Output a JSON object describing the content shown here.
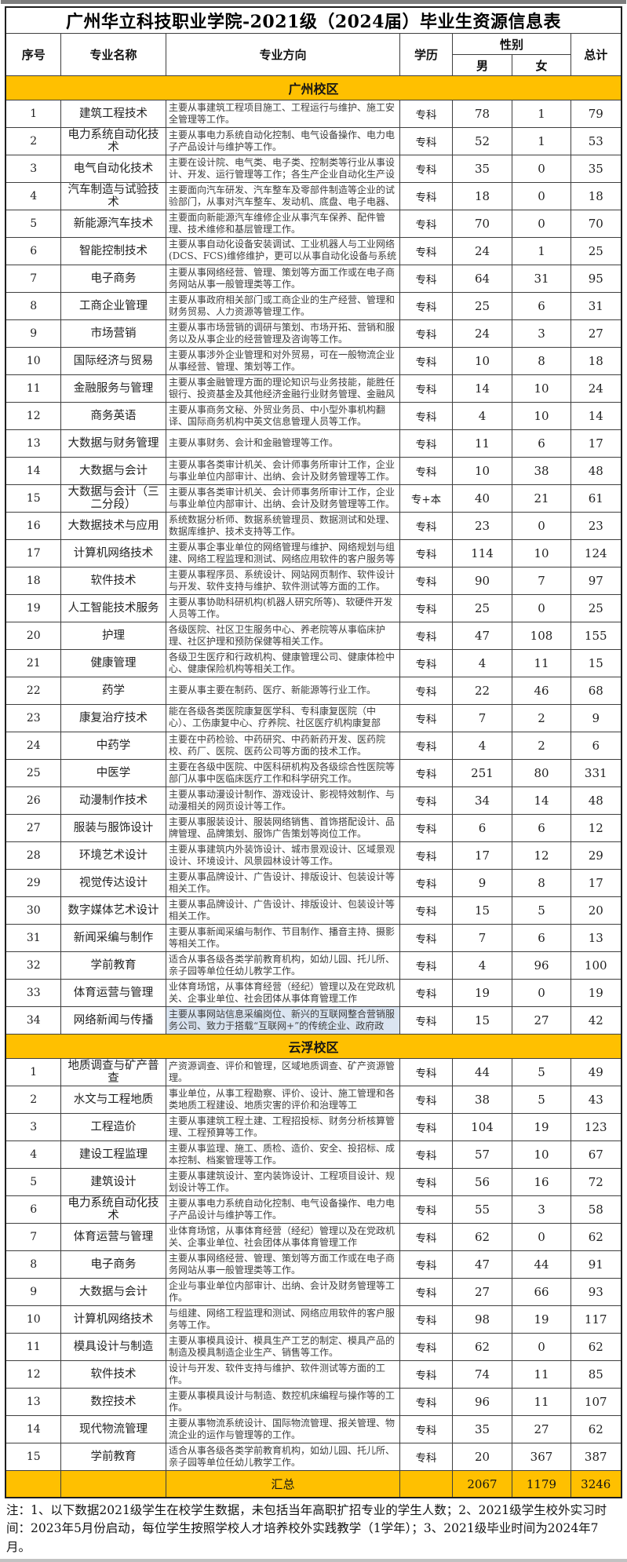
{
  "title": "广州华立科技职业学院-2021级（2024届）毕业生资源信息表",
  "columns": {
    "no": "序号",
    "major": "专业名称",
    "direction": "专业方向",
    "level": "学历",
    "gender": "性别",
    "male": "男",
    "female": "女",
    "total": "总计"
  },
  "colors": {
    "section_bg": "#FFC000",
    "highlight_cell_bg": "#dbe5f1"
  },
  "sections": [
    {
      "name": "广州校区",
      "rows": [
        {
          "no": "1",
          "major": "建筑工程技术",
          "desc": "主要从事建筑工程项目施工、工程运行与维护、施工安全管理等工作。",
          "level": "专科",
          "male": "78",
          "female": "1",
          "total": "79"
        },
        {
          "no": "2",
          "major": "电力系统自动化技术",
          "desc": "主要从事电力系统自动化控制、电气设备操作、电力电子产品设计与维护等工作。",
          "level": "专科",
          "male": "52",
          "female": "1",
          "total": "53"
        },
        {
          "no": "3",
          "major": "电气自动化技术",
          "desc": "主要在设计院、电气类、电子类、控制类等行业从事设计、开发、运行管理等工作；各生产企业自动化生产设",
          "level": "专科",
          "male": "35",
          "female": "0",
          "total": "35"
        },
        {
          "no": "4",
          "major": "汽车制造与试验技术",
          "desc": "主要面向汽车研发、汽车整车及零部件制造等企业的试验部门，从事对汽车整车、发动机、底盘、电子电器、",
          "level": "专科",
          "male": "18",
          "female": "0",
          "total": "18"
        },
        {
          "no": "5",
          "major": "新能源汽车技术",
          "desc": "主要面向新能源汽车维修企业从事汽车保养、配件管理、技术维修和基层管理工作。",
          "level": "专科",
          "male": "70",
          "female": "0",
          "total": "70"
        },
        {
          "no": "6",
          "major": "智能控制技术",
          "desc": "主要从事自动化设备安装调试、工业机器人与工业网络(DCS、FCS)维修维护，更可以从事自动化设备与系统的",
          "level": "专科",
          "male": "24",
          "female": "1",
          "total": "25"
        },
        {
          "no": "7",
          "major": "电子商务",
          "desc": "主要从事网络经营、管理、策划等方面工作或在电子商务网站从事一般管理类等工作。",
          "level": "专科",
          "male": "64",
          "female": "31",
          "total": "95"
        },
        {
          "no": "8",
          "major": "工商企业管理",
          "desc": "主要从事政府相关部门或工商企业的生产经营、管理和财务贸易、人力资源等管理工作。",
          "level": "专科",
          "male": "25",
          "female": "6",
          "total": "31"
        },
        {
          "no": "9",
          "major": "市场营销",
          "desc": "主要从事市场营销的调研与策划、市场开拓、营销和服务以及从事企业的经营管理及咨询等工作。",
          "level": "专科",
          "male": "24",
          "female": "3",
          "total": "27"
        },
        {
          "no": "10",
          "major": "国际经济与贸易",
          "desc": "主要从事涉外企业管理和对外贸易，可在一般物流企业从事经营、管理、策划等工作。",
          "level": "专科",
          "male": "10",
          "female": "8",
          "total": "18"
        },
        {
          "no": "11",
          "major": "金融服务与管理",
          "desc": "主要从事金融管理方面的理论知识与业务技能，能胜任银行、投资基金及其他经济金融行业财务管理、金融风",
          "level": "专科",
          "male": "14",
          "female": "10",
          "total": "24"
        },
        {
          "no": "12",
          "major": "商务英语",
          "desc": "主要从事商务文秘、外贸业务员、中小型外事机构翻译、国际商务机构中英文信息管理人员等工作。",
          "level": "专科",
          "male": "4",
          "female": "10",
          "total": "14"
        },
        {
          "no": "13",
          "major": "大数据与财务管理",
          "desc": "主要从事财务、会计和金融管理等工作。",
          "level": "专科",
          "male": "11",
          "female": "6",
          "total": "17"
        },
        {
          "no": "14",
          "major": "大数据与会计",
          "desc": "主要从事各类审计机关、会计师事务所审计工作，企业与事业单位内部审计、出纳、会计及财务管理等工作。",
          "level": "专科",
          "male": "10",
          "female": "38",
          "total": "48"
        },
        {
          "no": "15",
          "major": "大数据与会计（三二分段）",
          "desc": "主要从事各类审计机关、会计师事务所审计工作，企业与事业单位内部审计、出纳、会计及财务管理等工作。",
          "level": "专+本",
          "male": "40",
          "female": "21",
          "total": "61"
        },
        {
          "no": "16",
          "major": "大数据技术与应用",
          "desc": "系统数据分析师、数据系统管理员、数据测试和处理、数据库维护、技术支持等工作。",
          "level": "专科",
          "male": "23",
          "female": "0",
          "total": "23"
        },
        {
          "no": "17",
          "major": "计算机网络技术",
          "desc": "主要从事企事业单位的网络管理与维护、网络规划与组建、网络工程监理和测试、网络应用软件的客户服务等",
          "level": "专科",
          "male": "114",
          "female": "10",
          "total": "124"
        },
        {
          "no": "18",
          "major": "软件技术",
          "desc": "主要从事程序员、系统设计、网站网页制作、软件设计与开发、软件支持与维护、软件测试等方面的工作。",
          "level": "专科",
          "male": "90",
          "female": "7",
          "total": "97"
        },
        {
          "no": "19",
          "major": "人工智能技术服务",
          "desc": "主要从事协助科研机构(机器人研究所等)、软硬件开发人员等工作。",
          "level": "专科",
          "male": "25",
          "female": "0",
          "total": "25"
        },
        {
          "no": "20",
          "major": "护理",
          "desc": "各级医院、社区卫生服务中心、养老院等从事临床护理、社区护理和预防保健等相关工作。",
          "level": "专科",
          "male": "47",
          "female": "108",
          "total": "155"
        },
        {
          "no": "21",
          "major": "健康管理",
          "desc": "各级卫生医疗和行政机构、健康管理公司、健康体检中心、健康保险机构等相关工作。",
          "level": "专科",
          "male": "4",
          "female": "11",
          "total": "15"
        },
        {
          "no": "22",
          "major": "药学",
          "desc": "主要从事主要在制药、医疗、新能源等行业工作。",
          "level": "专科",
          "male": "22",
          "female": "46",
          "total": "68"
        },
        {
          "no": "23",
          "major": "康复治疗技术",
          "desc": "能在各级各类医院康复医学科、专科康复医院（中心）、工伤康复中心、疗养院、社区医疗机构康复部（社区",
          "level": "专科",
          "male": "7",
          "female": "2",
          "total": "9"
        },
        {
          "no": "24",
          "major": "中药学",
          "desc": "主要在中药检验、中药研究、中药新药开发、医药院校、药厂、医院、医药公司等方面的技术工作。",
          "level": "专科",
          "male": "4",
          "female": "2",
          "total": "6"
        },
        {
          "no": "25",
          "major": "中医学",
          "desc": "主要在各级中医院、中医科研机构及各级综合性医院等部门从事中医临床医疗工作和科学研究工作。",
          "level": "专科",
          "male": "251",
          "female": "80",
          "total": "331"
        },
        {
          "no": "26",
          "major": "动漫制作技术",
          "desc": "主要从事动漫设计制作、游戏设计、影视特效制作、与动漫相关的网页设计等工作。",
          "level": "专科",
          "male": "34",
          "female": "14",
          "total": "48"
        },
        {
          "no": "27",
          "major": "服装与服饰设计",
          "desc": "主要从事服装设计、服装网络销售、首饰搭配设计、品牌管理、品牌策划、服饰广告策划等岗位工作。",
          "level": "专科",
          "male": "6",
          "female": "6",
          "total": "12"
        },
        {
          "no": "28",
          "major": "环境艺术设计",
          "desc": "主要从事建筑内外装饰设计、城市景观设计、区域景观设计、环境设计、风景园林设计等工作。",
          "level": "专科",
          "male": "17",
          "female": "12",
          "total": "29"
        },
        {
          "no": "29",
          "major": "视觉传达设计",
          "desc": "主要从事品牌设计、广告设计、排版设计、包装设计等相关工作。",
          "level": "专科",
          "male": "9",
          "female": "8",
          "total": "17"
        },
        {
          "no": "30",
          "major": "数字媒体艺术设计",
          "desc": "主要从事品牌设计、广告设计、排版设计、包装设计等相关工作。",
          "level": "专科",
          "male": "15",
          "female": "5",
          "total": "20"
        },
        {
          "no": "31",
          "major": "新闻采编与制作",
          "desc": "主要从事新闻采编与制作、节目制作、播音主持、摄影等相关工作。",
          "level": "专科",
          "male": "7",
          "female": "6",
          "total": "13"
        },
        {
          "no": "32",
          "major": "学前教育",
          "desc": "适合从事各级各类学前教育机构，如幼儿园、托儿所、亲子园等单位任幼儿教学工作。",
          "level": "专科",
          "male": "4",
          "female": "96",
          "total": "100"
        },
        {
          "no": "33",
          "major": "体育运营与管理",
          "desc": "业体育场馆，从事体育经营（经纪）管理以及在党政机关、企事业单位、社会团体从事体育管理工作",
          "level": "专科",
          "male": "19",
          "female": "0",
          "total": "19"
        },
        {
          "no": "34",
          "major": "网络新闻与传播",
          "desc": "主要从事网站信息采编岗位、新兴的互联网整合营销服务公司、致力于搭载“互联网+”的传统企业、政府政",
          "level": "专科",
          "male": "15",
          "female": "27",
          "total": "42",
          "hl": true
        }
      ]
    },
    {
      "name": "云浮校区",
      "rows": [
        {
          "no": "1",
          "major": "地质调查与矿产普查",
          "desc": "产资源调查、评价和管理，区域地质调查、矿产资源管理。",
          "level": "专科",
          "male": "44",
          "female": "5",
          "total": "49"
        },
        {
          "no": "2",
          "major": "水文与工程地质",
          "desc": "事业单位，从事工程勘察、评价、设计、施工管理和各类地质工程建设、地质灾害的评价和治理等工",
          "level": "专科",
          "male": "38",
          "female": "5",
          "total": "43"
        },
        {
          "no": "3",
          "major": "工程造价",
          "desc": "主要从事建筑工程土建、工程招投标、财务分析核算管理、工程预算等工作。",
          "level": "专科",
          "male": "104",
          "female": "19",
          "total": "123"
        },
        {
          "no": "4",
          "major": "建设工程监理",
          "desc": "主要从事监理、施工、质检、造价、安全、投招标、成本控制、档案管理等工作。",
          "level": "专科",
          "male": "57",
          "female": "10",
          "total": "67"
        },
        {
          "no": "5",
          "major": "建筑设计",
          "desc": "主要从事建筑设计、室内装饰设计、工程项目设计、规划设计等工作。",
          "level": "专科",
          "male": "56",
          "female": "16",
          "total": "72"
        },
        {
          "no": "6",
          "major": "电力系统自动化技术",
          "desc": "主要从事电力系统自动化控制、电气设备操作、电力电子产品设计与维护等工作。",
          "level": "专科",
          "male": "55",
          "female": "3",
          "total": "58"
        },
        {
          "no": "7",
          "major": "体育运营与管理",
          "desc": "业体育场馆，从事体育经营（经纪）管理以及在党政机关、企事业单位、社会团体从事体育管理工作",
          "level": "专科",
          "male": "62",
          "female": "0",
          "total": "62"
        },
        {
          "no": "8",
          "major": "电子商务",
          "desc": "主要从事网络经营、管理、策划等方面工作或在电子商务网站从事一般管理类等工作。",
          "level": "专科",
          "male": "47",
          "female": "44",
          "total": "91"
        },
        {
          "no": "9",
          "major": "大数据与会计",
          "desc": "企业与事业单位内部审计、出纳、会计及财务管理等工作。",
          "level": "专科",
          "male": "27",
          "female": "66",
          "total": "93"
        },
        {
          "no": "10",
          "major": "计算机网络技术",
          "desc": "与组建、网络工程监理和测试、网络应用软件的客户服务等工作。",
          "level": "专科",
          "male": "98",
          "female": "19",
          "total": "117"
        },
        {
          "no": "11",
          "major": "模具设计与制造",
          "desc": "主要从事模具设计、模具生产工艺的制定、模具产品的制造及模具制造企业生产、销售等工作。",
          "level": "专科",
          "male": "62",
          "female": "0",
          "total": "62"
        },
        {
          "no": "12",
          "major": "软件技术",
          "desc": "设计与开发、软件支持与维护、软件测试等方面的工作。",
          "level": "专科",
          "male": "74",
          "female": "11",
          "total": "85"
        },
        {
          "no": "13",
          "major": "数控技术",
          "desc": "主要从事模具设计与制造、数控机床编程与操作等的工作。",
          "level": "专科",
          "male": "96",
          "female": "11",
          "total": "107"
        },
        {
          "no": "14",
          "major": "现代物流管理",
          "desc": "主要从事物流系统设计、国际物流管理、报关管理、物流企业的运作与管理等的工作。",
          "level": "专科",
          "male": "35",
          "female": "27",
          "total": "62"
        },
        {
          "no": "15",
          "major": "学前教育",
          "desc": "适合从事各级各类学前教育机构，如幼儿园、托儿所、亲子园等单位任幼儿教学工作。",
          "level": "专科",
          "male": "20",
          "female": "367",
          "total": "387"
        }
      ]
    }
  ],
  "summary": {
    "label": "汇总",
    "male": "2067",
    "female": "1179",
    "total": "3246"
  },
  "footnote": "注：1、以下数据2021级学生在校学生数据，未包括当年高职扩招专业的学生人数；2、2021级学生校外实习时间：2023年5月份启动，每位学生按照学校人才培养校外实践教学（1学年）；3、2021级毕业时间为2024年7月。"
}
